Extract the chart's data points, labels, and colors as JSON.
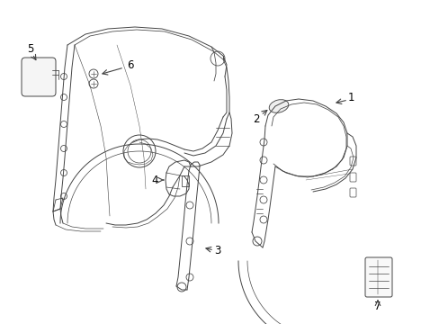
{
  "background_color": "#ffffff",
  "line_color": "#444444",
  "line_width": 0.7,
  "label_fontsize": 8.5,
  "figsize": [
    4.89,
    3.6
  ],
  "dpi": 100
}
